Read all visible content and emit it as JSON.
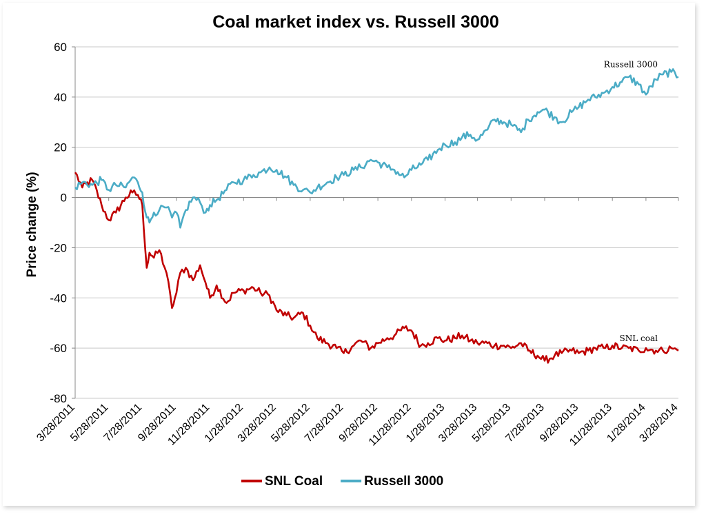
{
  "chart_data": {
    "type": "line",
    "title": "Coal market index vs. Russell 3000",
    "xlabel": "",
    "ylabel": "Price change (%)",
    "ylim": [
      -80,
      60
    ],
    "yticks": [
      60,
      40,
      20,
      0,
      -20,
      -40,
      -60,
      -80
    ],
    "xticks": [
      "3/28/2011",
      "5/28/2011",
      "7/28/2011",
      "9/28/2011",
      "11/28/2011",
      "1/28/2012",
      "3/28/2012",
      "5/28/2012",
      "7/28/2012",
      "9/28/2012",
      "11/28/2012",
      "1/28/2013",
      "3/28/2013",
      "5/28/2013",
      "7/28/2013",
      "9/28/2013",
      "11/28/2013",
      "1/28/2014",
      "3/28/2014"
    ],
    "grid": "horizontal",
    "legend_position": "bottom",
    "series": [
      {
        "name": "SNL Coal",
        "color": "#C00000",
        "x": [
          "2011-03-28",
          "2011-04-10",
          "2011-04-28",
          "2011-05-15",
          "2011-05-28",
          "2011-06-10",
          "2011-06-28",
          "2011-07-10",
          "2011-07-20",
          "2011-07-28",
          "2011-08-05",
          "2011-08-10",
          "2011-08-18",
          "2011-08-28",
          "2011-09-10",
          "2011-09-20",
          "2011-09-28",
          "2011-10-05",
          "2011-10-15",
          "2011-10-28",
          "2011-11-10",
          "2011-11-20",
          "2011-11-28",
          "2011-12-10",
          "2011-12-28",
          "2012-01-10",
          "2012-01-28",
          "2012-02-15",
          "2012-02-28",
          "2012-03-15",
          "2012-03-28",
          "2012-04-15",
          "2012-04-28",
          "2012-05-15",
          "2012-05-28",
          "2012-06-10",
          "2012-06-28",
          "2012-07-15",
          "2012-07-28",
          "2012-08-15",
          "2012-08-28",
          "2012-09-15",
          "2012-09-28",
          "2012-10-15",
          "2012-10-28",
          "2012-11-15",
          "2012-11-28",
          "2012-12-15",
          "2012-12-28",
          "2013-01-15",
          "2013-01-28",
          "2013-02-15",
          "2013-02-28",
          "2013-03-15",
          "2013-03-28",
          "2013-04-15",
          "2013-04-28",
          "2013-05-15",
          "2013-05-28",
          "2013-06-15",
          "2013-06-28",
          "2013-07-15",
          "2013-07-28",
          "2013-08-15",
          "2013-08-28",
          "2013-09-15",
          "2013-09-28",
          "2013-10-15",
          "2013-10-28",
          "2013-11-15",
          "2013-11-28",
          "2013-12-15",
          "2013-12-28",
          "2014-01-15",
          "2014-01-28",
          "2014-02-15",
          "2014-02-28",
          "2014-03-15",
          "2014-03-28"
        ],
        "values": [
          10,
          4,
          7,
          -3,
          -9,
          -6,
          0,
          2,
          1,
          -3,
          -28,
          -22,
          -24,
          -21,
          -30,
          -44,
          -38,
          -30,
          -28,
          -33,
          -27,
          -34,
          -40,
          -35,
          -42,
          -38,
          -37,
          -36,
          -38,
          -39,
          -45,
          -47,
          -48,
          -46,
          -51,
          -56,
          -58,
          -60,
          -62,
          -59,
          -57,
          -60,
          -58,
          -56,
          -55,
          -52,
          -53,
          -59,
          -58,
          -56,
          -57,
          -56,
          -55,
          -57,
          -58,
          -58,
          -59,
          -59,
          -60,
          -58,
          -61,
          -63,
          -65,
          -63,
          -62,
          -61,
          -62,
          -61,
          -60,
          -60,
          -59,
          -60,
          -60,
          -61,
          -60,
          -61,
          -61,
          -60,
          -61
        ]
      },
      {
        "name": "Russell 3000",
        "color": "#4BACC6",
        "x": [
          "2011-03-28",
          "2011-04-10",
          "2011-04-28",
          "2011-05-15",
          "2011-05-28",
          "2011-06-10",
          "2011-06-28",
          "2011-07-10",
          "2011-07-20",
          "2011-07-28",
          "2011-08-05",
          "2011-08-10",
          "2011-08-18",
          "2011-08-28",
          "2011-09-10",
          "2011-09-20",
          "2011-09-28",
          "2011-10-05",
          "2011-10-15",
          "2011-10-28",
          "2011-11-10",
          "2011-11-20",
          "2011-11-28",
          "2011-12-10",
          "2011-12-28",
          "2012-01-10",
          "2012-01-28",
          "2012-02-15",
          "2012-02-28",
          "2012-03-15",
          "2012-03-28",
          "2012-04-15",
          "2012-04-28",
          "2012-05-15",
          "2012-05-28",
          "2012-06-10",
          "2012-06-28",
          "2012-07-15",
          "2012-07-28",
          "2012-08-15",
          "2012-08-28",
          "2012-09-15",
          "2012-09-28",
          "2012-10-15",
          "2012-10-28",
          "2012-11-15",
          "2012-11-28",
          "2012-12-15",
          "2012-12-28",
          "2013-01-15",
          "2013-01-28",
          "2013-02-15",
          "2013-02-28",
          "2013-03-15",
          "2013-03-28",
          "2013-04-15",
          "2013-04-28",
          "2013-05-15",
          "2013-05-28",
          "2013-06-15",
          "2013-06-28",
          "2013-07-15",
          "2013-07-28",
          "2013-08-15",
          "2013-08-28",
          "2013-09-15",
          "2013-09-28",
          "2013-10-15",
          "2013-10-28",
          "2013-11-15",
          "2013-11-28",
          "2013-12-15",
          "2013-12-28",
          "2014-01-15",
          "2014-01-28",
          "2014-02-15",
          "2014-02-28",
          "2014-03-15",
          "2014-03-28"
        ],
        "values": [
          4,
          6,
          5,
          7,
          3,
          5,
          4,
          8,
          6,
          2,
          -8,
          -10,
          -6,
          -5,
          -4,
          -8,
          -6,
          -12,
          -5,
          0,
          -2,
          -6,
          -3,
          -1,
          3,
          6,
          7,
          9,
          10,
          12,
          11,
          8,
          5,
          3,
          2,
          4,
          6,
          8,
          9,
          11,
          12,
          15,
          14,
          12,
          11,
          8,
          11,
          13,
          15,
          19,
          21,
          22,
          24,
          25,
          23,
          27,
          31,
          30,
          29,
          26,
          31,
          34,
          35,
          32,
          30,
          34,
          36,
          39,
          40,
          42,
          44,
          46,
          48,
          45,
          41,
          47,
          49,
          50,
          48
        ]
      }
    ],
    "annotations": [
      {
        "text": "Russell 3000",
        "series": "Russell 3000"
      },
      {
        "text": "SNL coal",
        "series": "SNL Coal"
      }
    ]
  }
}
